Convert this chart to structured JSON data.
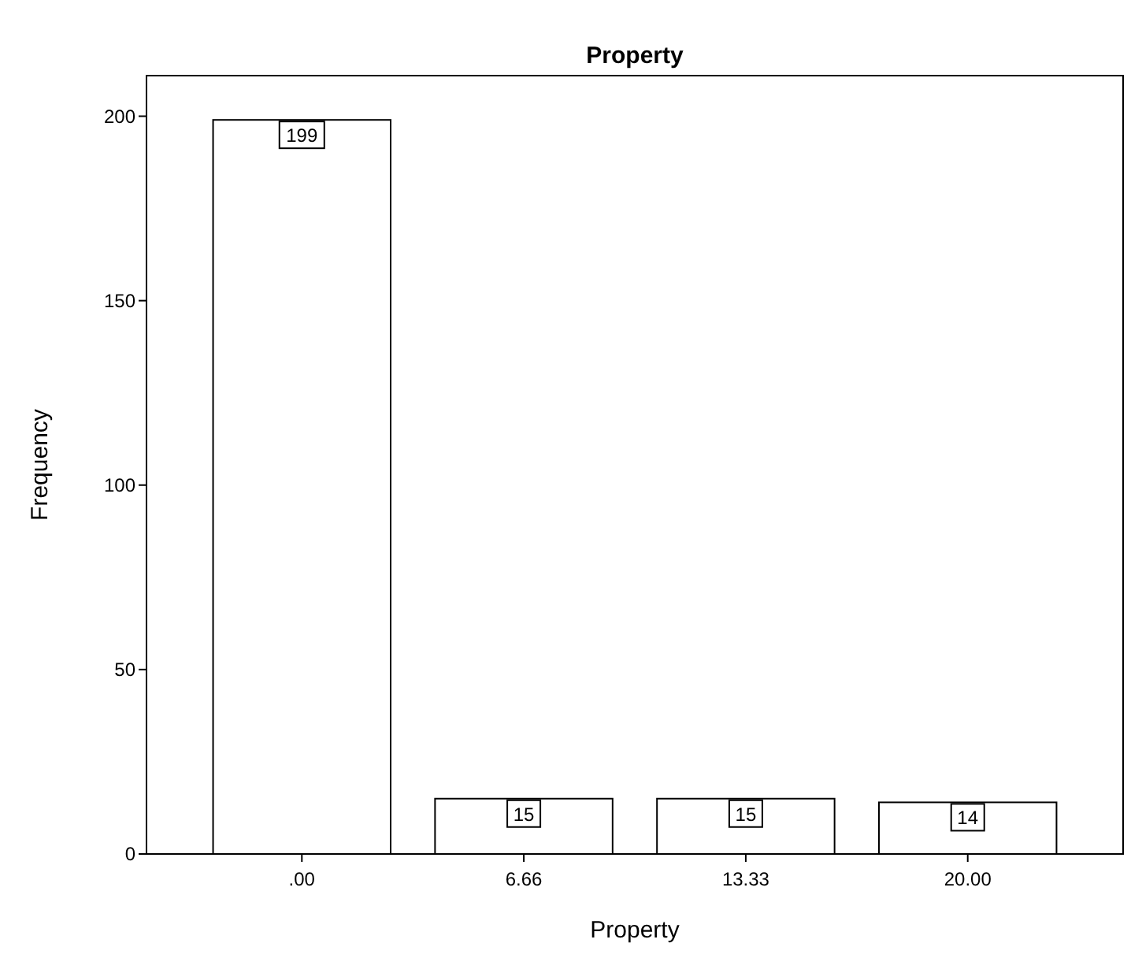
{
  "chart_data": {
    "type": "bar",
    "title": "Property",
    "xlabel": "Property",
    "ylabel": "Frequency",
    "categories": [
      ".00",
      "6.66",
      "13.33",
      "20.00"
    ],
    "values": [
      199,
      15,
      15,
      14
    ],
    "color": "#ffffff",
    "ylim": [
      0,
      211
    ],
    "yticks": [
      0,
      50,
      100,
      150,
      200
    ],
    "data_labels": true,
    "grid": false
  }
}
